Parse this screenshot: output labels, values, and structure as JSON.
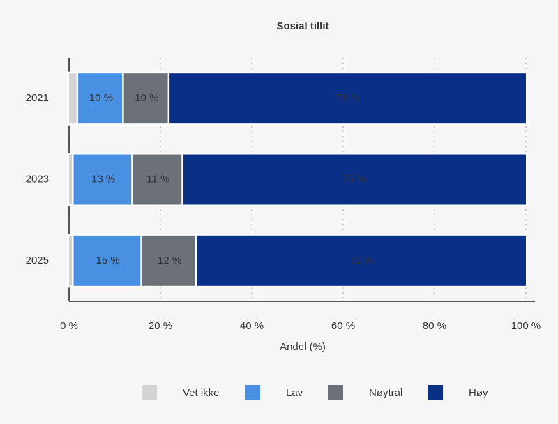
{
  "chart_data": {
    "type": "stacked-bar-horizontal",
    "title": "Sosial tillit",
    "categories": [
      "2021",
      "2023",
      "2025"
    ],
    "series": [
      {
        "name": "Vet ikke",
        "color": "#d4d4d4",
        "values": [
          2,
          1,
          1
        ]
      },
      {
        "name": "Lav",
        "color": "#4a90e2",
        "values": [
          10,
          13,
          15
        ],
        "value_labels": [
          "10 %",
          "13 %",
          "15 %"
        ]
      },
      {
        "name": "Nøytral",
        "color": "#6b7079",
        "values": [
          10,
          11,
          12
        ],
        "value_labels": [
          "10 %",
          "11 %",
          "12 %"
        ]
      },
      {
        "name": "Høy",
        "color": "#0a2f86",
        "values": [
          78,
          75,
          72
        ],
        "value_labels": [
          "78 %",
          "75 %",
          "72 %"
        ]
      }
    ],
    "xlabel": "Andel (%)",
    "xlim": [
      0,
      100
    ],
    "xticks": [
      {
        "value": 0,
        "label": "0 %"
      },
      {
        "value": 20,
        "label": "20 %"
      },
      {
        "value": 40,
        "label": "40 %"
      },
      {
        "value": 60,
        "label": "60 %"
      },
      {
        "value": 80,
        "label": "80 %"
      },
      {
        "value": 100,
        "label": "100 %"
      }
    ],
    "grid": true,
    "legend": "bottom"
  }
}
